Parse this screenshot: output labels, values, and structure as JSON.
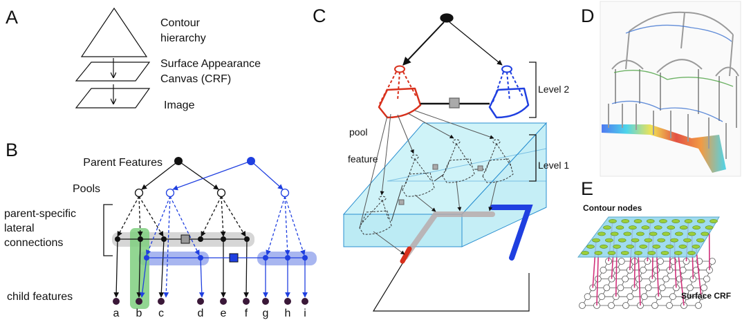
{
  "panel_labels": [
    "A",
    "B",
    "C",
    "D",
    "E"
  ],
  "panel_a": {
    "layers": [
      [
        "Contour",
        "hierarchy"
      ],
      [
        "Surface Appearance",
        "Canvas (CRF)"
      ],
      [
        "Image"
      ]
    ]
  },
  "panel_b": {
    "parent_features": "Parent Features",
    "pools": "Pools",
    "lateral_connections": [
      "parent-specific",
      "lateral",
      "connections"
    ],
    "child_features": "child features",
    "child_labels": [
      "a",
      "b",
      "c",
      "d",
      "e",
      "f",
      "g",
      "h",
      "i"
    ]
  },
  "panel_c": {
    "level_2": "Level 2",
    "level_1": "Level 1",
    "pool": "pool",
    "feature": "feature"
  },
  "panel_e": {
    "contour_nodes": "Contour nodes",
    "surface_crf": "Surface CRF"
  }
}
